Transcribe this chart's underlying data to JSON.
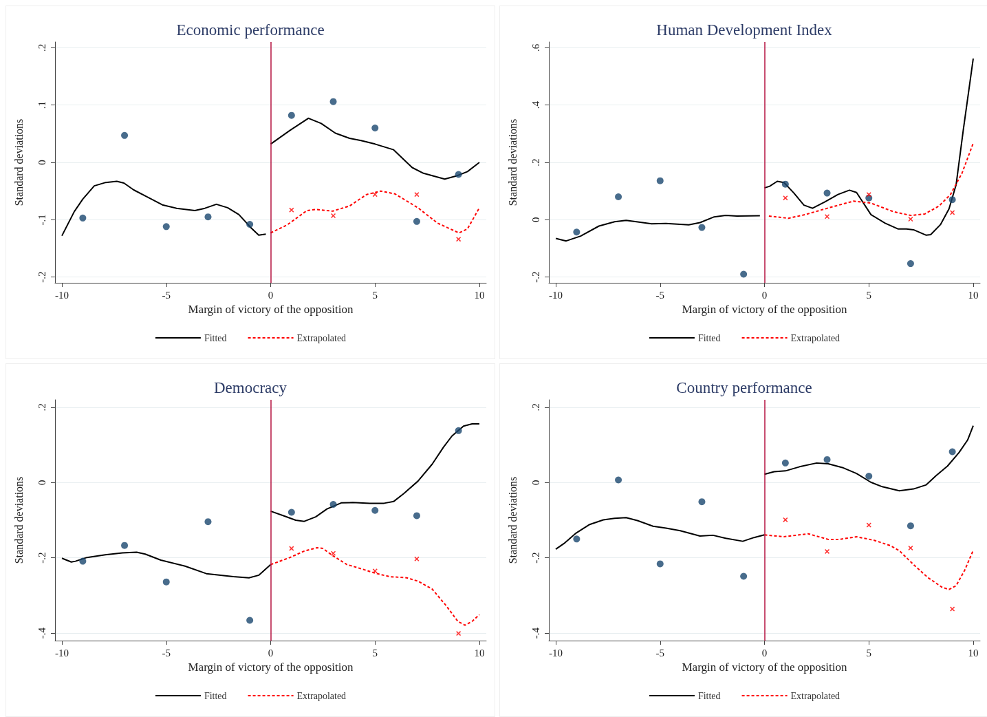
{
  "chart_data": [
    {
      "type": "line",
      "title": "Economic performance",
      "xlabel": "Margin of victory of the opposition",
      "ylabel": "Standard deviations",
      "xlim": [
        -10.33,
        10.33
      ],
      "ylim": [
        -0.21,
        0.21
      ],
      "xticks": [
        -10,
        -5,
        0,
        5,
        10
      ],
      "yticks": [
        {
          "value": -0.2,
          "label": "-.2"
        },
        {
          "value": -0.1,
          "label": "-.1"
        },
        {
          "value": 0,
          "label": "0"
        },
        {
          "value": 0.1,
          "label": ".1"
        },
        {
          "value": 0.2,
          "label": ".2"
        }
      ],
      "grid": "y",
      "legend": "bottom",
      "ref_lines": [
        {
          "axis": "x",
          "value": 0,
          "color": "#b5123f"
        }
      ],
      "series": [
        {
          "type": "line",
          "color": "#000000",
          "marker": "none",
          "line_style": "solid",
          "x": [
            -10,
            -9.41,
            -9,
            -8.45,
            -7.9,
            -7.37,
            -7.03,
            -6.56,
            -5.87,
            -5.19,
            -4.51,
            -3.63,
            -3.15,
            -2.6,
            -2.06,
            -1.52,
            -0.97,
            -0.57,
            -0.23
          ],
          "values": [
            -0.128,
            -0.086,
            -0.064,
            -0.041,
            -0.035,
            -0.033,
            -0.036,
            -0.048,
            -0.061,
            -0.074,
            -0.08,
            -0.084,
            -0.08,
            -0.073,
            -0.079,
            -0.091,
            -0.113,
            -0.127,
            -0.125
          ]
        },
        {
          "name": "Fitted",
          "type": "line",
          "color": "#000000",
          "marker": "none",
          "line_style": "solid",
          "x": [
            0,
            0.93,
            1.81,
            2.42,
            3.1,
            3.78,
            4.33,
            5,
            5.89,
            6.78,
            7.32,
            8.34,
            8.95,
            9.43,
            10
          ],
          "values": [
            0.032,
            0.056,
            0.077,
            0.068,
            0.051,
            0.042,
            0.038,
            0.032,
            0.022,
            -0.009,
            -0.019,
            -0.029,
            -0.023,
            -0.016,
            0
          ]
        },
        {
          "name": "Extrapolated",
          "type": "line",
          "color": "#ff0000",
          "marker": "none",
          "line_style": "dashed",
          "x": [
            0,
            0.79,
            1.74,
            2.15,
            2.97,
            3.78,
            4.6,
            5.28,
            5.96,
            7.05,
            8,
            9.02,
            9.43,
            10
          ],
          "values": [
            -0.123,
            -0.109,
            -0.084,
            -0.082,
            -0.085,
            -0.076,
            -0.056,
            -0.05,
            -0.055,
            -0.079,
            -0.106,
            -0.123,
            -0.116,
            -0.079
          ]
        },
        {
          "type": "scatter",
          "color": "#1a476f",
          "marker": "circle",
          "x": [
            -9,
            -7,
            -5,
            -3,
            -1,
            1,
            3,
            5,
            7,
            9
          ],
          "values": [
            -0.097,
            0.047,
            -0.112,
            -0.095,
            -0.108,
            0.082,
            0.106,
            0.06,
            -0.103,
            -0.021
          ]
        },
        {
          "type": "scatter",
          "color": "#ff0000",
          "marker": "cross",
          "x": [
            1,
            3,
            5,
            7,
            9
          ],
          "values": [
            -0.083,
            -0.093,
            -0.056,
            -0.056,
            -0.134
          ]
        }
      ]
    },
    {
      "type": "line",
      "title": "Human Development Index",
      "xlabel": "Margin of victory of the opposition",
      "ylabel": "Standard deviations",
      "xlim": [
        -10.33,
        10.33
      ],
      "ylim": [
        -0.22,
        0.62
      ],
      "xticks": [
        -10,
        -5,
        0,
        5,
        10
      ],
      "yticks": [
        {
          "value": -0.2,
          "label": "-.2"
        },
        {
          "value": 0,
          "label": "0"
        },
        {
          "value": 0.2,
          "label": ".2"
        },
        {
          "value": 0.4,
          "label": ".4"
        },
        {
          "value": 0.6,
          "label": ".6"
        }
      ],
      "grid": "y",
      "legend": "bottom",
      "ref_lines": [
        {
          "axis": "x",
          "value": 0,
          "color": "#b5123f"
        }
      ],
      "series": [
        {
          "type": "line",
          "color": "#000000",
          "marker": "none",
          "line_style": "solid",
          "x": [
            -10,
            -9.5,
            -8.81,
            -7.93,
            -7.18,
            -6.63,
            -5.95,
            -5.41,
            -4.72,
            -3.63,
            -3.09,
            -2.41,
            -1.86,
            -1.32,
            -0.22
          ],
          "values": [
            -0.065,
            -0.074,
            -0.057,
            -0.022,
            -0.007,
            -0.002,
            -0.009,
            -0.014,
            -0.013,
            -0.018,
            -0.01,
            0.01,
            0.015,
            0.013,
            0.014
          ]
        },
        {
          "name": "Fitted",
          "type": "line",
          "color": "#000000",
          "marker": "none",
          "line_style": "solid",
          "x": [
            0,
            0.25,
            0.61,
            0.93,
            1.41,
            1.89,
            2.3,
            2.91,
            3.52,
            4.07,
            4.41,
            5.1,
            5.78,
            6.39,
            6.8,
            7.14,
            7.75,
            7.96,
            8.43,
            8.84,
            9.18,
            9.52,
            10
          ],
          "values": [
            0.111,
            0.117,
            0.134,
            0.13,
            0.093,
            0.051,
            0.04,
            0.063,
            0.088,
            0.103,
            0.095,
            0.018,
            -0.012,
            -0.032,
            -0.032,
            -0.035,
            -0.054,
            -0.052,
            -0.017,
            0.038,
            0.122,
            0.311,
            0.562
          ]
        },
        {
          "name": "Extrapolated",
          "type": "line",
          "color": "#ff0000",
          "marker": "none",
          "line_style": "dashed",
          "x": [
            0.21,
            1.14,
            1.96,
            3.05,
            4.27,
            5.1,
            6.18,
            7,
            7.68,
            8.36,
            8.91,
            9.46,
            10
          ],
          "values": [
            0.013,
            0.005,
            0.018,
            0.041,
            0.065,
            0.058,
            0.028,
            0.015,
            0.02,
            0.048,
            0.088,
            0.162,
            0.267
          ]
        },
        {
          "type": "scatter",
          "color": "#1a476f",
          "marker": "circle",
          "x": [
            -9,
            -7,
            -5,
            -3,
            -1,
            1,
            3,
            5,
            7,
            9
          ],
          "values": [
            -0.043,
            0.08,
            0.136,
            -0.027,
            -0.19,
            0.124,
            0.093,
            0.076,
            -0.153,
            0.07
          ]
        },
        {
          "type": "scatter",
          "color": "#ff0000",
          "marker": "cross",
          "x": [
            1,
            3,
            5,
            7,
            9
          ],
          "values": [
            0.076,
            0.011,
            0.088,
            0.002,
            0.025
          ]
        }
      ]
    },
    {
      "type": "line",
      "title": "Democracy",
      "xlabel": "Margin of victory of the opposition",
      "ylabel": "Standard deviations",
      "xlim": [
        -10.33,
        10.33
      ],
      "ylim": [
        -0.42,
        0.22
      ],
      "xticks": [
        -10,
        -5,
        0,
        5,
        10
      ],
      "yticks": [
        {
          "value": -0.4,
          "label": "-.4"
        },
        {
          "value": -0.2,
          "label": "-.2"
        },
        {
          "value": 0,
          "label": "0"
        },
        {
          "value": 0.2,
          "label": ".2"
        }
      ],
      "grid": "y",
      "legend": "bottom",
      "ref_lines": [
        {
          "axis": "x",
          "value": 0,
          "color": "#b5123f"
        }
      ],
      "series": [
        {
          "type": "line",
          "color": "#000000",
          "marker": "none",
          "line_style": "solid",
          "x": [
            -10,
            -9.55,
            -9.35,
            -8.8,
            -7.92,
            -7.1,
            -6.42,
            -6.01,
            -5.26,
            -4.1,
            -3.08,
            -2.47,
            -1.79,
            -1.04,
            -0.56,
            0
          ],
          "values": [
            -0.201,
            -0.211,
            -0.209,
            -0.199,
            -0.192,
            -0.187,
            -0.185,
            -0.19,
            -0.206,
            -0.222,
            -0.242,
            -0.246,
            -0.25,
            -0.253,
            -0.246,
            -0.218
          ]
        },
        {
          "name": "Fitted",
          "type": "line",
          "color": "#000000",
          "marker": "none",
          "line_style": "solid",
          "x": [
            0,
            0.66,
            1.2,
            1.61,
            2.16,
            2.7,
            3.38,
            3.93,
            4.75,
            5.43,
            5.9,
            6.38,
            7.06,
            7.74,
            8.28,
            8.69,
            9.24,
            9.65,
            10
          ],
          "values": [
            -0.076,
            -0.089,
            -0.1,
            -0.103,
            -0.091,
            -0.07,
            -0.054,
            -0.053,
            -0.055,
            -0.055,
            -0.05,
            -0.029,
            0.004,
            0.049,
            0.094,
            0.124,
            0.15,
            0.156,
            0.156
          ]
        },
        {
          "name": "Extrapolated",
          "type": "line",
          "color": "#ff0000",
          "marker": "none",
          "line_style": "dashed",
          "x": [
            0,
            0.93,
            1.61,
            2.23,
            2.5,
            2.97,
            3.66,
            4.34,
            5.02,
            5.7,
            6.52,
            7.06,
            7.74,
            8.42,
            8.97,
            9.31,
            9.65,
            10
          ],
          "values": [
            -0.218,
            -0.199,
            -0.182,
            -0.173,
            -0.175,
            -0.194,
            -0.218,
            -0.229,
            -0.241,
            -0.25,
            -0.253,
            -0.262,
            -0.283,
            -0.328,
            -0.369,
            -0.379,
            -0.369,
            -0.351
          ]
        },
        {
          "type": "scatter",
          "color": "#1a476f",
          "marker": "circle",
          "x": [
            -9,
            -7,
            -5,
            -3,
            -1,
            1,
            3,
            5,
            7,
            9
          ],
          "values": [
            -0.209,
            -0.167,
            -0.264,
            -0.104,
            -0.366,
            -0.079,
            -0.058,
            -0.074,
            -0.088,
            0.138
          ]
        },
        {
          "type": "scatter",
          "color": "#ff0000",
          "marker": "cross",
          "x": [
            1,
            3,
            5,
            7,
            9
          ],
          "values": [
            -0.175,
            -0.188,
            -0.235,
            -0.203,
            -0.401
          ]
        }
      ]
    },
    {
      "type": "line",
      "title": "Country performance",
      "xlabel": "Margin of victory of the opposition",
      "ylabel": "Standard deviations",
      "xlim": [
        -10.33,
        10.33
      ],
      "ylim": [
        -0.42,
        0.22
      ],
      "xticks": [
        -10,
        -5,
        0,
        5,
        10
      ],
      "yticks": [
        {
          "value": -0.4,
          "label": "-.4"
        },
        {
          "value": -0.2,
          "label": "-.2"
        },
        {
          "value": 0,
          "label": "0"
        },
        {
          "value": 0.2,
          "label": ".2"
        }
      ],
      "grid": "y",
      "legend": "bottom",
      "ref_lines": [
        {
          "axis": "x",
          "value": 0,
          "color": "#b5123f"
        }
      ],
      "series": [
        {
          "type": "line",
          "color": "#000000",
          "marker": "none",
          "line_style": "solid",
          "x": [
            -10,
            -9.56,
            -9.02,
            -8.4,
            -7.72,
            -7.18,
            -6.63,
            -6.09,
            -5.34,
            -4.72,
            -4.04,
            -3.09,
            -2.47,
            -1.86,
            -1.04,
            -0.5,
            0
          ],
          "values": [
            -0.177,
            -0.16,
            -0.134,
            -0.112,
            -0.099,
            -0.095,
            -0.093,
            -0.101,
            -0.116,
            -0.121,
            -0.128,
            -0.142,
            -0.14,
            -0.148,
            -0.156,
            -0.146,
            -0.139
          ]
        },
        {
          "name": "Fitted",
          "type": "line",
          "color": "#000000",
          "marker": "none",
          "line_style": "solid",
          "x": [
            0,
            0.46,
            1,
            1.68,
            2.5,
            3.05,
            3.73,
            4.41,
            5.09,
            5.64,
            6.46,
            7.14,
            7.75,
            8.23,
            8.77,
            9.32,
            9.73,
            10
          ],
          "values": [
            0.022,
            0.029,
            0.031,
            0.042,
            0.052,
            0.05,
            0.04,
            0.024,
            0.001,
            -0.011,
            -0.022,
            -0.017,
            -0.006,
            0.019,
            0.044,
            0.08,
            0.113,
            0.151
          ]
        },
        {
          "name": "Extrapolated",
          "type": "line",
          "color": "#ff0000",
          "marker": "none",
          "line_style": "dashed",
          "x": [
            0,
            0.93,
            2.09,
            3.05,
            3.59,
            4.41,
            5.23,
            6.05,
            6.46,
            7.14,
            7.82,
            8.5,
            8.84,
            9.18,
            9.59,
            10
          ],
          "values": [
            -0.139,
            -0.144,
            -0.136,
            -0.151,
            -0.151,
            -0.144,
            -0.153,
            -0.168,
            -0.181,
            -0.218,
            -0.252,
            -0.278,
            -0.284,
            -0.274,
            -0.233,
            -0.18
          ]
        },
        {
          "type": "scatter",
          "color": "#1a476f",
          "marker": "circle",
          "x": [
            -9,
            -7,
            -5,
            -3,
            -1,
            1,
            3,
            5,
            7,
            9
          ],
          "values": [
            -0.15,
            0.007,
            -0.216,
            -0.051,
            -0.249,
            0.052,
            0.061,
            0.017,
            -0.115,
            0.082
          ]
        },
        {
          "type": "scatter",
          "color": "#ff0000",
          "marker": "cross",
          "x": [
            1,
            3,
            5,
            7,
            9
          ],
          "values": [
            -0.099,
            -0.183,
            -0.113,
            -0.174,
            -0.336
          ]
        }
      ]
    }
  ]
}
